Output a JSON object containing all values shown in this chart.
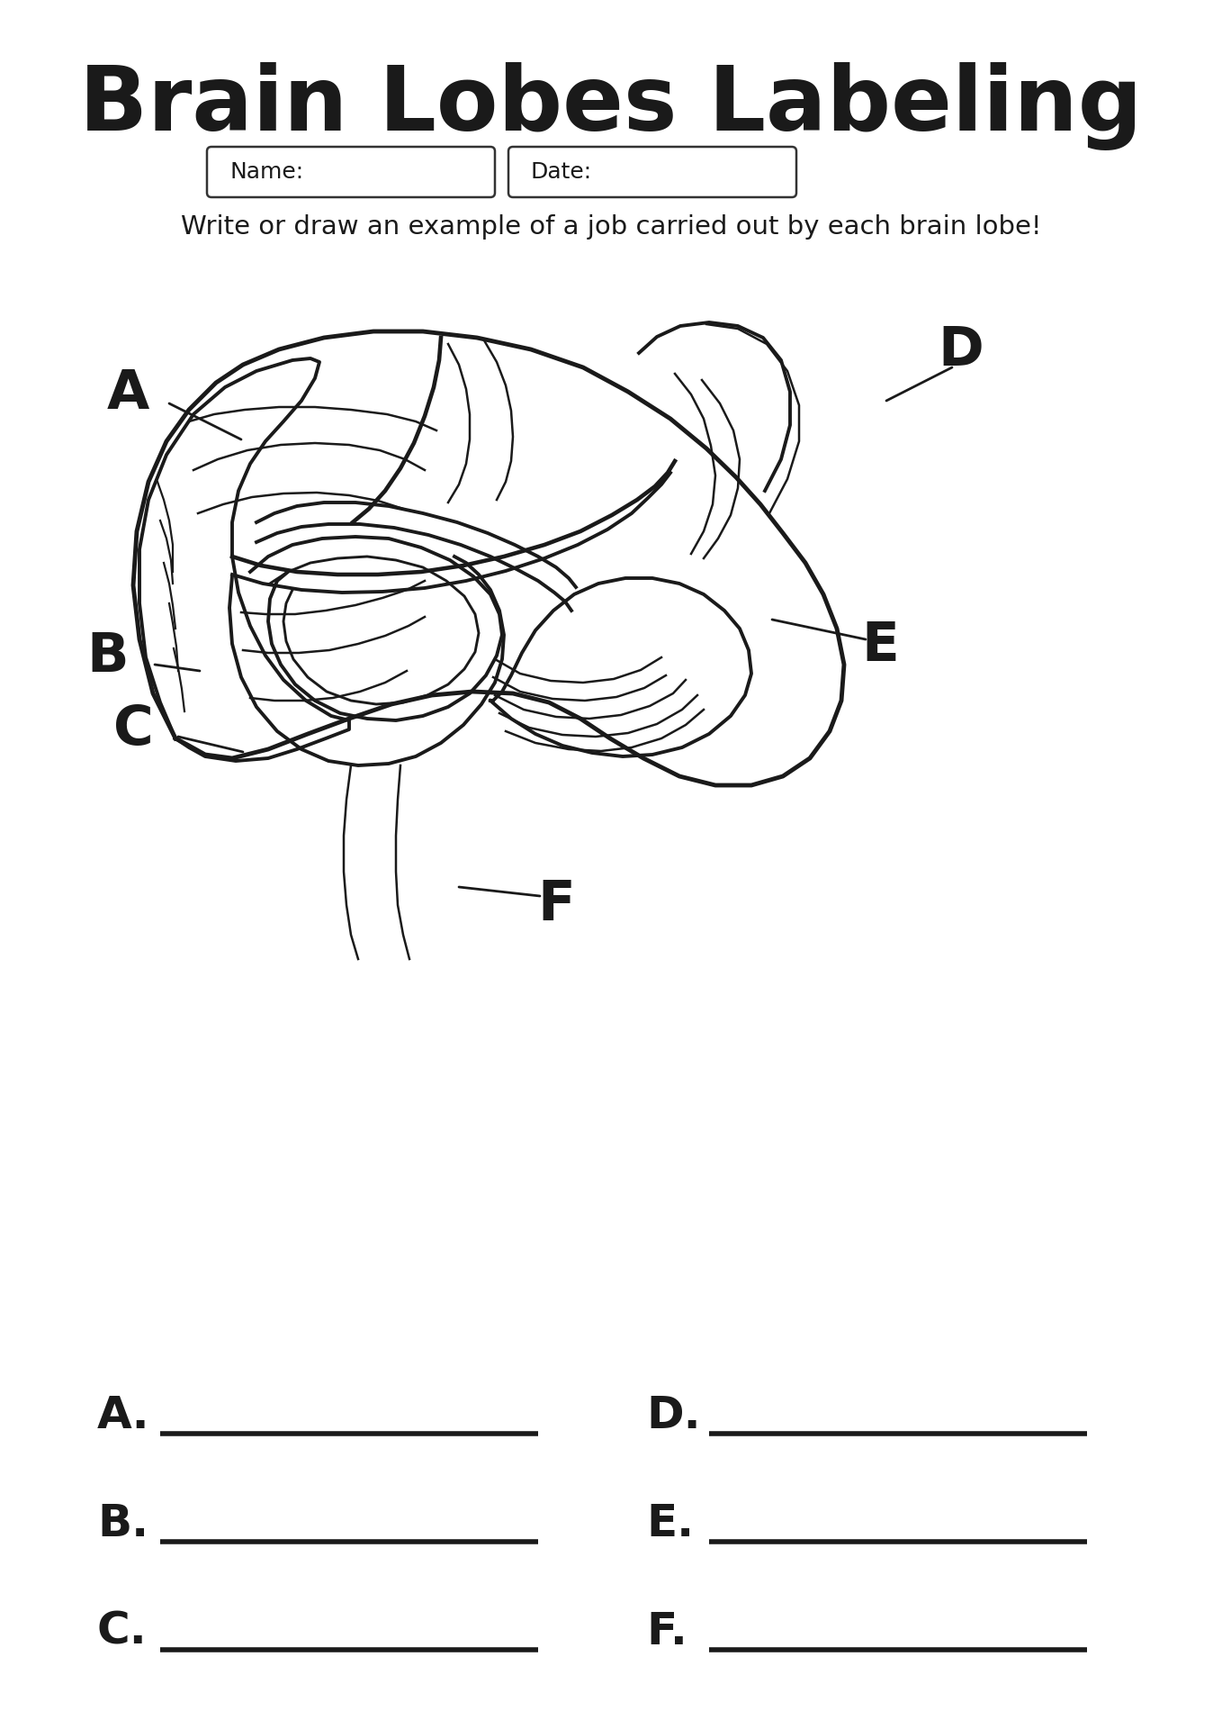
{
  "title": "Brain Lobes Labeling",
  "subtitle": "Write or draw an example of a job carried out by each brain lobe!",
  "name_label": "Name:",
  "date_label": "Date:",
  "bg_color": "#ffffff",
  "text_color": "#1a1a1a",
  "title_fontsize": 72,
  "subtitle_fontsize": 21,
  "answer_fontsize": 36,
  "answer_labels_left": [
    "A.",
    "B.",
    "C."
  ],
  "answer_labels_right": [
    "D.",
    "E.",
    "F."
  ],
  "brain_color": "#ffffff",
  "brain_edge_color": "#1a1a1a",
  "lobe_line_color": "#1a1a1a"
}
